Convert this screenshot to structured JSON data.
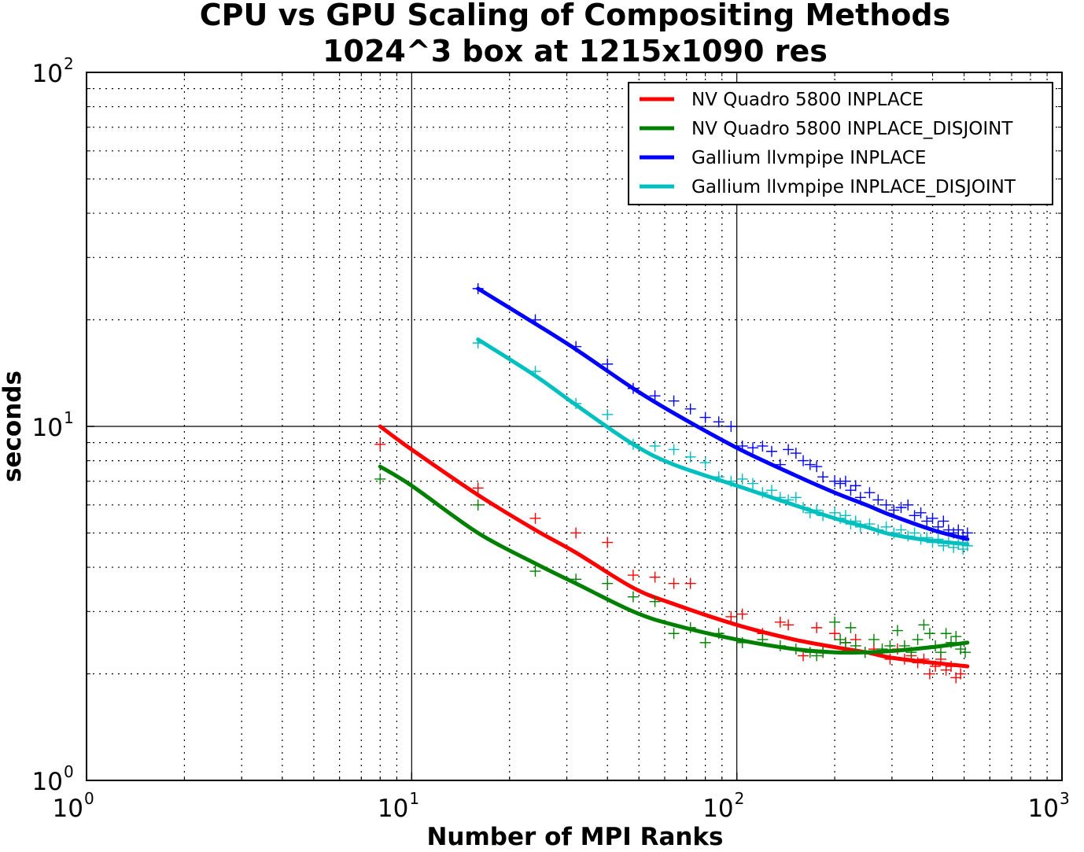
{
  "chart_data": {
    "type": "line",
    "title": "CPU vs GPU Scaling of Compositing Methods",
    "subtitle": "1024^3 box at 1215x1090 res",
    "xlabel": "Number of MPI Ranks",
    "ylabel": "seconds",
    "xscale": "log",
    "yscale": "log",
    "xlim": [
      1,
      1000
    ],
    "ylim": [
      1,
      100
    ],
    "grid": true,
    "legend_position": "top-right",
    "x_ticks": [
      {
        "base": "10",
        "exp": "0",
        "value": 1
      },
      {
        "base": "10",
        "exp": "1",
        "value": 10
      },
      {
        "base": "10",
        "exp": "2",
        "value": 100
      },
      {
        "base": "10",
        "exp": "3",
        "value": 1000
      }
    ],
    "y_ticks": [
      {
        "base": "10",
        "exp": "0",
        "value": 1
      },
      {
        "base": "10",
        "exp": "1",
        "value": 10
      },
      {
        "base": "10",
        "exp": "2",
        "value": 100
      }
    ],
    "series": [
      {
        "name": "NV Quadro 5800 INPLACE",
        "color": "#ff0000",
        "fit": {
          "x": [
            8,
            10,
            16,
            24,
            32,
            48,
            64,
            100,
            150,
            200,
            250,
            300,
            400,
            512
          ],
          "y": [
            10.0,
            8.6,
            6.4,
            5.1,
            4.4,
            3.5,
            3.15,
            2.75,
            2.5,
            2.38,
            2.3,
            2.22,
            2.15,
            2.1
          ]
        },
        "points": {
          "x": [
            8,
            16,
            24,
            32,
            40,
            48,
            56,
            64,
            72,
            96,
            104,
            120,
            136,
            144,
            160,
            176,
            184,
            200,
            216,
            232,
            248,
            264,
            280,
            296,
            312,
            328,
            344,
            360,
            376,
            392,
            408,
            424,
            440,
            456,
            472,
            488
          ],
          "y": [
            8.9,
            6.7,
            5.5,
            5.0,
            4.7,
            3.8,
            3.75,
            3.6,
            3.6,
            2.9,
            2.95,
            2.6,
            2.8,
            2.75,
            2.25,
            2.7,
            2.3,
            2.6,
            2.45,
            2.5,
            2.3,
            2.35,
            2.3,
            2.2,
            2.35,
            2.2,
            2.25,
            2.15,
            2.2,
            2.0,
            2.1,
            2.2,
            2.05,
            2.1,
            1.95,
            2.0
          ]
        }
      },
      {
        "name": "NV Quadro 5800 INPLACE_DISJOINT",
        "color": "#008000",
        "fit": {
          "x": [
            8,
            10,
            16,
            24,
            32,
            48,
            64,
            100,
            150,
            200,
            250,
            300,
            400,
            512
          ],
          "y": [
            7.7,
            6.8,
            5.0,
            4.1,
            3.6,
            3.0,
            2.75,
            2.5,
            2.35,
            2.3,
            2.3,
            2.32,
            2.38,
            2.45
          ]
        },
        "points": {
          "x": [
            8,
            16,
            24,
            32,
            40,
            48,
            56,
            64,
            72,
            80,
            88,
            104,
            120,
            136,
            152,
            168,
            176,
            184,
            200,
            208,
            216,
            224,
            232,
            248,
            264,
            280,
            296,
            312,
            328,
            344,
            360,
            376,
            392,
            408,
            424,
            440,
            456,
            472,
            488,
            504
          ],
          "y": [
            7.1,
            6.0,
            3.9,
            3.7,
            3.6,
            3.3,
            3.2,
            2.6,
            2.7,
            2.45,
            2.6,
            2.45,
            2.5,
            2.4,
            2.35,
            2.3,
            2.25,
            2.3,
            2.8,
            2.5,
            2.45,
            2.7,
            2.4,
            2.3,
            2.5,
            2.35,
            2.4,
            2.65,
            2.4,
            2.3,
            2.5,
            2.75,
            2.6,
            2.4,
            2.3,
            2.6,
            2.45,
            2.55,
            2.35,
            2.3
          ]
        }
      },
      {
        "name": "Gallium llvmpipe INPLACE",
        "color": "#0000ff",
        "fit": {
          "x": [
            16,
            24,
            32,
            48,
            64,
            100,
            150,
            200,
            250,
            300,
            400,
            512
          ],
          "y": [
            24.5,
            19.5,
            16.5,
            12.8,
            10.9,
            8.7,
            7.3,
            6.5,
            6.0,
            5.6,
            5.1,
            4.8
          ]
        },
        "points": {
          "x": [
            16,
            24,
            32,
            40,
            48,
            56,
            64,
            72,
            80,
            88,
            96,
            104,
            112,
            120,
            128,
            136,
            144,
            152,
            160,
            168,
            176,
            184,
            200,
            208,
            216,
            224,
            232,
            240,
            256,
            272,
            288,
            304,
            320,
            336,
            352,
            368,
            384,
            400,
            416,
            432,
            448,
            464,
            480,
            496,
            512
          ],
          "y": [
            24.5,
            20.0,
            16.8,
            15.0,
            12.8,
            12.2,
            11.8,
            11.2,
            10.6,
            10.3,
            10.0,
            8.8,
            8.7,
            8.8,
            8.5,
            7.8,
            8.6,
            8.4,
            8.0,
            7.8,
            7.7,
            7.2,
            7.0,
            6.9,
            7.0,
            6.6,
            6.8,
            6.3,
            6.5,
            6.2,
            6.0,
            5.8,
            5.9,
            6.0,
            5.6,
            5.7,
            5.4,
            5.5,
            5.2,
            5.4,
            5.1,
            5.0,
            5.1,
            4.9,
            5.0
          ]
        }
      },
      {
        "name": "Gallium llvmpipe INPLACE_DISJOINT",
        "color": "#00bfbf",
        "fit": {
          "x": [
            16,
            24,
            32,
            48,
            64,
            100,
            150,
            200,
            250,
            300,
            400,
            512
          ],
          "y": [
            17.6,
            13.9,
            11.5,
            8.9,
            7.8,
            6.8,
            6.0,
            5.5,
            5.2,
            4.95,
            4.75,
            4.65
          ]
        },
        "points": {
          "x": [
            16,
            24,
            32,
            40,
            48,
            56,
            64,
            72,
            80,
            88,
            96,
            104,
            112,
            120,
            128,
            136,
            144,
            152,
            160,
            168,
            176,
            184,
            200,
            208,
            216,
            224,
            232,
            240,
            256,
            272,
            288,
            304,
            320,
            336,
            352,
            368,
            384,
            400,
            416,
            432,
            448,
            464,
            480,
            496,
            512
          ],
          "y": [
            17.2,
            14.3,
            11.6,
            10.8,
            8.9,
            8.8,
            8.6,
            8.2,
            7.9,
            7.2,
            7.0,
            7.1,
            6.9,
            6.5,
            6.6,
            6.3,
            6.2,
            6.3,
            5.9,
            5.7,
            5.8,
            5.6,
            5.7,
            5.5,
            5.6,
            5.3,
            5.4,
            5.2,
            5.3,
            5.1,
            5.2,
            5.0,
            5.1,
            4.9,
            5.0,
            4.8,
            4.85,
            4.7,
            4.8,
            4.6,
            4.7,
            4.55,
            4.65,
            4.5,
            4.6
          ]
        }
      }
    ]
  }
}
